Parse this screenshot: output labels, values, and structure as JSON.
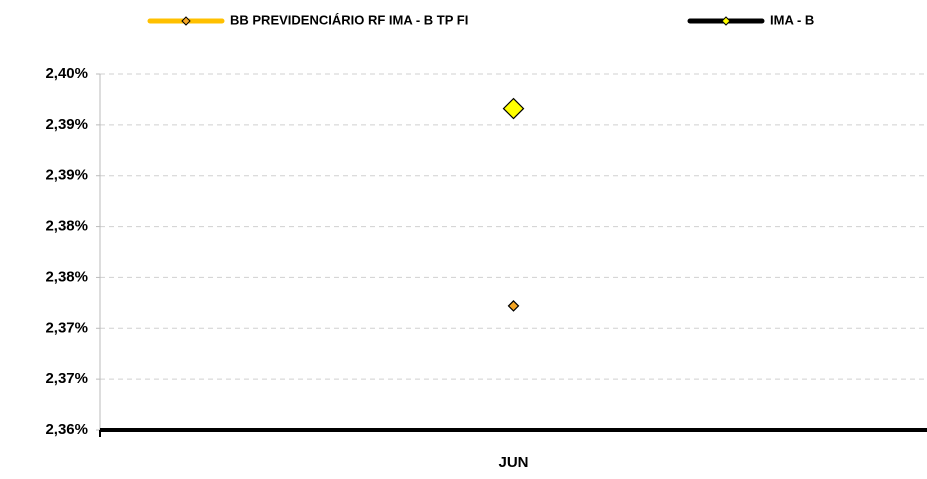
{
  "chart_data": {
    "type": "line",
    "categories": [
      "JUN"
    ],
    "series": [
      {
        "name": "BB PREVIDENCIÁRIO RF IMA - B TP FI",
        "color": "#ffc000",
        "marker_color": "#f5a623",
        "values": [
          2.3747
        ]
      },
      {
        "name": "IMA - B",
        "color": "#000000",
        "marker_color": "#ffff00",
        "values": [
          2.3941
        ]
      }
    ],
    "ylim": [
      2.3625,
      2.3975
    ],
    "yticks": [
      {
        "value": 2.3625,
        "label": "2,36%"
      },
      {
        "value": 2.3675,
        "label": "2,37%"
      },
      {
        "value": 2.3725,
        "label": "2,37%"
      },
      {
        "value": 2.3775,
        "label": "2,38%"
      },
      {
        "value": 2.3825,
        "label": "2,38%"
      },
      {
        "value": 2.3875,
        "label": "2,39%"
      },
      {
        "value": 2.3925,
        "label": "2,39%"
      },
      {
        "value": 2.3975,
        "label": "2,40%"
      }
    ],
    "grid": true,
    "legend": "top"
  }
}
